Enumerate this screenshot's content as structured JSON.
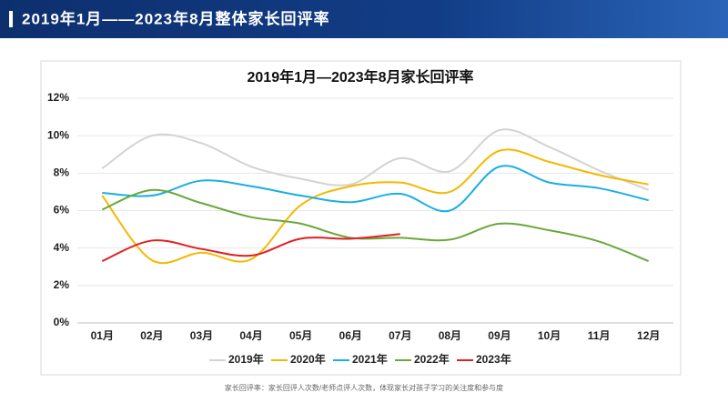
{
  "header": {
    "title": "2019年1月——2023年8月整体家长回评率"
  },
  "footnote": "家长回评率：家长回评人次数/老师点评人次数，体现家长对孩子学习的关注度和参与度",
  "chart_data": {
    "type": "line",
    "title": "2019年1月—2023年8月家长回评率",
    "categories": [
      "01月",
      "02月",
      "03月",
      "04月",
      "05月",
      "06月",
      "07月",
      "08月",
      "09月",
      "10月",
      "11月",
      "12月"
    ],
    "series": [
      {
        "name": "2019年",
        "color": "#d3d3d3",
        "values": [
          8.25,
          10.0,
          9.6,
          8.35,
          7.7,
          7.4,
          8.8,
          8.1,
          10.3,
          9.4,
          8.15,
          7.1
        ]
      },
      {
        "name": "2020年",
        "color": "#f5b800",
        "values": [
          6.8,
          3.35,
          3.75,
          3.4,
          6.3,
          7.3,
          7.5,
          7.0,
          9.2,
          8.6,
          7.9,
          7.4
        ]
      },
      {
        "name": "2021年",
        "color": "#1aaee3",
        "values": [
          6.95,
          6.8,
          7.6,
          7.3,
          6.8,
          6.45,
          6.9,
          6.0,
          8.35,
          7.5,
          7.2,
          6.55
        ]
      },
      {
        "name": "2022年",
        "color": "#6aa83a",
        "values": [
          6.05,
          7.1,
          6.4,
          5.65,
          5.3,
          4.55,
          4.55,
          4.45,
          5.3,
          4.95,
          4.35,
          3.3
        ]
      },
      {
        "name": "2023年",
        "color": "#e02020",
        "values": [
          3.3,
          4.4,
          3.95,
          3.6,
          4.5,
          4.5,
          4.75,
          null,
          null,
          null,
          null,
          null
        ]
      }
    ],
    "ylim": [
      0,
      12
    ],
    "yticks": [
      {
        "value": 0,
        "label": "0%"
      },
      {
        "value": 2,
        "label": "2%"
      },
      {
        "value": 4,
        "label": "4%"
      },
      {
        "value": 6,
        "label": "6%"
      },
      {
        "value": 8,
        "label": "8%"
      },
      {
        "value": 10,
        "label": "10%"
      },
      {
        "value": 12,
        "label": "12%"
      }
    ],
    "grid": true,
    "legend": "bottom"
  }
}
